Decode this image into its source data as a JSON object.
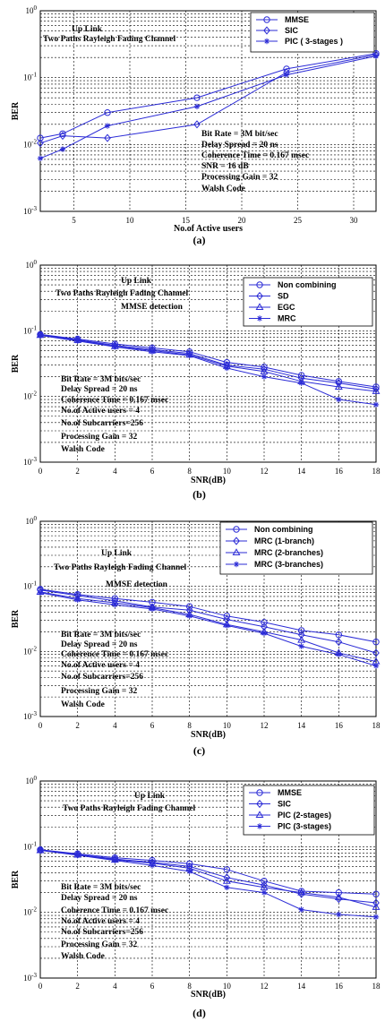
{
  "colors": {
    "series": "#2b2bd6",
    "axes": "#000000",
    "background": "#ffffff"
  },
  "chart_data": [
    {
      "type": "line",
      "panel_label": "(a)",
      "xlabel": "No.of Active users",
      "ylabel": "BER",
      "xlim": [
        2,
        32
      ],
      "ylim": [
        0.001,
        1
      ],
      "y_scale": "log",
      "x_ticks": [
        5,
        10,
        15,
        20,
        25,
        30
      ],
      "y_tick_labels": [
        "10^0",
        "10^-1",
        "10^-2",
        "10^-3"
      ],
      "grid": true,
      "legend_position": "top-right",
      "annotations": [
        "Up Link",
        "Two Paths Rayleigh Fading Channel"
      ],
      "parameters": [
        "Bit Rate = 3M bit/sec",
        "Delay Spread = 20 ns",
        "Coherence Time = 0.167 msec",
        "SNR = 16 dB",
        "Processing Gain = 32",
        "Walsh Code"
      ],
      "series": [
        {
          "name": "MMSE",
          "marker": "circle",
          "x": [
            2,
            4,
            8,
            16,
            24,
            32
          ],
          "y": [
            0.0125,
            0.0145,
            0.03,
            0.05,
            0.135,
            0.23
          ]
        },
        {
          "name": "SIC",
          "marker": "diamond",
          "x": [
            2,
            4,
            8,
            16,
            24,
            32
          ],
          "y": [
            0.0105,
            0.0135,
            0.0125,
            0.02,
            0.12,
            0.22
          ]
        },
        {
          "name": "PIC ( 3-stages )",
          "marker": "star",
          "x": [
            2,
            4,
            8,
            16,
            24,
            32
          ],
          "y": [
            0.0062,
            0.0085,
            0.019,
            0.037,
            0.11,
            0.21
          ]
        }
      ]
    },
    {
      "type": "line",
      "panel_label": "(b)",
      "xlabel": "SNR(dB)",
      "ylabel": "BER",
      "xlim": [
        0,
        18
      ],
      "ylim": [
        0.001,
        1
      ],
      "y_scale": "log",
      "x_ticks": [
        0,
        2,
        4,
        6,
        8,
        10,
        12,
        14,
        16,
        18
      ],
      "y_tick_labels": [
        "10^0",
        "10^-1",
        "10^-2",
        "10^-3"
      ],
      "grid": true,
      "legend_position": "top-right",
      "annotations": [
        "Up Link",
        "Two Paths Rayleigh Fading Channel",
        "MMSE detection"
      ],
      "parameters": [
        "Bit Rate = 3M bits/sec",
        "Delay Spread = 20 ns",
        "Coherence Time = 0.167 msec",
        "No.of Active users = 4",
        "No.of Subcarriers=256",
        "Processing Gain = 32",
        "Walsh Code"
      ],
      "series": [
        {
          "name": "Non combining",
          "marker": "circle",
          "x": [
            0,
            2,
            4,
            6,
            8,
            10,
            12,
            14,
            16,
            18
          ],
          "y": [
            0.088,
            0.075,
            0.063,
            0.055,
            0.048,
            0.033,
            0.028,
            0.021,
            0.017,
            0.014
          ]
        },
        {
          "name": "SD",
          "marker": "diamond",
          "x": [
            0,
            2,
            4,
            6,
            8,
            10,
            12,
            14,
            16,
            18
          ],
          "y": [
            0.087,
            0.073,
            0.06,
            0.052,
            0.045,
            0.03,
            0.026,
            0.019,
            0.016,
            0.013
          ]
        },
        {
          "name": "EGC",
          "marker": "triangle",
          "x": [
            0,
            2,
            4,
            6,
            8,
            10,
            12,
            14,
            16,
            18
          ],
          "y": [
            0.086,
            0.072,
            0.058,
            0.05,
            0.043,
            0.029,
            0.024,
            0.017,
            0.014,
            0.012
          ]
        },
        {
          "name": "MRC",
          "marker": "star",
          "x": [
            0,
            2,
            4,
            6,
            8,
            10,
            12,
            14,
            16,
            18
          ],
          "y": [
            0.085,
            0.07,
            0.057,
            0.048,
            0.042,
            0.027,
            0.02,
            0.016,
            0.009,
            0.0075
          ]
        }
      ]
    },
    {
      "type": "line",
      "panel_label": "(c)",
      "xlabel": "SNR(dB)",
      "ylabel": "BER",
      "xlim": [
        0,
        18
      ],
      "ylim": [
        0.001,
        1
      ],
      "y_scale": "log",
      "x_ticks": [
        0,
        2,
        4,
        6,
        8,
        10,
        12,
        14,
        16,
        18
      ],
      "y_tick_labels": [
        "10^0",
        "10^-1",
        "10^-2",
        "10^-3"
      ],
      "grid": true,
      "legend_position": "top-right",
      "annotations": [
        "Up Link",
        "Two Paths Rayleigh Fading Channel",
        "MMSE detection"
      ],
      "parameters": [
        "Bit Rate = 3M bits/sec",
        "Delay Spread = 20 ns",
        "Coherence Time = 0.167 msec",
        "No.of Active users = 4",
        "No.of Subcarriers=256",
        "Processing Gain = 32",
        "Walsh Code"
      ],
      "series": [
        {
          "name": "Non combining",
          "marker": "circle",
          "x": [
            0,
            2,
            4,
            6,
            8,
            10,
            12,
            14,
            16,
            18
          ],
          "y": [
            0.09,
            0.075,
            0.065,
            0.057,
            0.049,
            0.035,
            0.028,
            0.021,
            0.018,
            0.014
          ]
        },
        {
          "name": "MRC (1-branch)",
          "marker": "diamond",
          "x": [
            0,
            2,
            4,
            6,
            8,
            10,
            12,
            14,
            16,
            18
          ],
          "y": [
            0.088,
            0.072,
            0.06,
            0.048,
            0.043,
            0.031,
            0.024,
            0.018,
            0.014,
            0.0095
          ]
        },
        {
          "name": "MRC (2-branches)",
          "marker": "triangle",
          "x": [
            0,
            2,
            4,
            6,
            8,
            10,
            12,
            14,
            16,
            18
          ],
          "y": [
            0.082,
            0.065,
            0.056,
            0.047,
            0.037,
            0.026,
            0.02,
            0.015,
            0.0095,
            0.007
          ]
        },
        {
          "name": "MRC (3-branches)",
          "marker": "star",
          "x": [
            0,
            2,
            4,
            6,
            8,
            10,
            12,
            14,
            16,
            18
          ],
          "y": [
            0.08,
            0.062,
            0.052,
            0.045,
            0.035,
            0.025,
            0.019,
            0.012,
            0.009,
            0.006
          ]
        }
      ]
    },
    {
      "type": "line",
      "panel_label": "(d)",
      "xlabel": "SNR(dB)",
      "ylabel": "BER",
      "xlim": [
        0,
        18
      ],
      "ylim": [
        0.001,
        1
      ],
      "y_scale": "log",
      "x_ticks": [
        0,
        2,
        4,
        6,
        8,
        10,
        12,
        14,
        16,
        18
      ],
      "y_tick_labels": [
        "10^0",
        "10^-1",
        "10^-2",
        "10^-3"
      ],
      "grid": true,
      "legend_position": "top-right",
      "annotations": [
        "Up Link",
        "Two Paths Rayleigh Fading Channel"
      ],
      "parameters": [
        "Bit Rate = 3M bits/sec",
        "Delay Spread = 20 ns",
        "Coherence Time = 0.167 msec",
        "No.of Active users = 4",
        "No.of Subcarriers=256",
        "Processing Gain = 32",
        "Walsh Code"
      ],
      "series": [
        {
          "name": "MMSE",
          "marker": "circle",
          "x": [
            0,
            2,
            4,
            6,
            8,
            10,
            12,
            14,
            16,
            18
          ],
          "y": [
            0.09,
            0.078,
            0.068,
            0.062,
            0.055,
            0.045,
            0.03,
            0.021,
            0.02,
            0.019
          ]
        },
        {
          "name": "SIC",
          "marker": "diamond",
          "x": [
            0,
            2,
            4,
            6,
            8,
            10,
            12,
            14,
            16,
            18
          ],
          "y": [
            0.089,
            0.076,
            0.065,
            0.058,
            0.05,
            0.034,
            0.026,
            0.019,
            0.016,
            0.014
          ]
        },
        {
          "name": "PIC (2-stages)",
          "marker": "triangle",
          "x": [
            0,
            2,
            4,
            6,
            8,
            10,
            12,
            14,
            16,
            18
          ],
          "y": [
            0.088,
            0.075,
            0.063,
            0.056,
            0.047,
            0.03,
            0.024,
            0.02,
            0.017,
            0.012
          ]
        },
        {
          "name": "PIC (3-stages)",
          "marker": "star",
          "x": [
            0,
            2,
            4,
            6,
            8,
            10,
            12,
            14,
            16,
            18
          ],
          "y": [
            0.088,
            0.074,
            0.062,
            0.052,
            0.042,
            0.024,
            0.02,
            0.011,
            0.0093,
            0.0085
          ]
        }
      ]
    }
  ]
}
